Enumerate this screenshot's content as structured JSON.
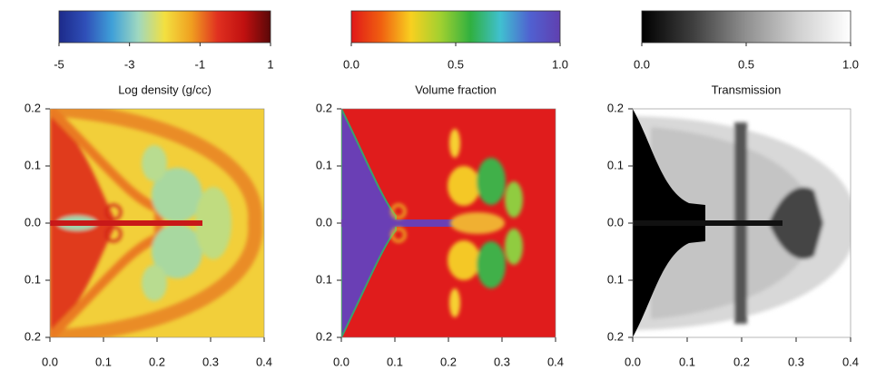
{
  "chart_data": [
    {
      "type": "image",
      "colorbar_label": "Log density (g/cc)",
      "colormap": [
        "#1c2a8a",
        "#2f4fb8",
        "#3fa0d8",
        "#9fd8c0",
        "#f3e040",
        "#f0a020",
        "#e03020",
        "#c01010",
        "#5a0808"
      ],
      "clim": [
        -5,
        1
      ],
      "cticks": [
        -5,
        -3,
        -1,
        1
      ],
      "xlim": [
        0,
        0.4
      ],
      "xticks": [
        {
          "value": 0,
          "label": "0.0"
        },
        0.1,
        0.2,
        0.3,
        0.4
      ],
      "ylim": [
        -0.2,
        0.2
      ],
      "yticks": [
        0.2,
        0.1,
        {
          "value": 0,
          "label": "0.0"
        },
        {
          "value": -0.1,
          "label": "0.1"
        },
        {
          "value": -0.2,
          "label": "0.2"
        }
      ]
    },
    {
      "type": "image",
      "colorbar_label": "Volume fraction",
      "colormap": [
        "#e01818",
        "#f06010",
        "#f8d020",
        "#a0d030",
        "#30b040",
        "#40c0d0",
        "#5060d0",
        "#6040b0"
      ],
      "clim": [
        0,
        1
      ],
      "cticks": [
        {
          "value": 0,
          "label": "0.0"
        },
        0.5,
        {
          "value": 1,
          "label": "1.0"
        }
      ],
      "xlim": [
        0,
        0.4
      ],
      "xticks": [
        {
          "value": 0,
          "label": "0.0"
        },
        0.1,
        0.2,
        0.3,
        0.4
      ],
      "ylim": [
        -0.2,
        0.2
      ],
      "yticks": [
        0.2,
        0.1,
        {
          "value": 0,
          "label": "0.0"
        },
        {
          "value": -0.1,
          "label": "0.1"
        },
        {
          "value": -0.2,
          "label": "0.2"
        }
      ]
    },
    {
      "type": "image",
      "colorbar_label": "Transmission",
      "colormap": [
        "#000000",
        "#404040",
        "#909090",
        "#d0d0d0",
        "#ffffff"
      ],
      "clim": [
        0,
        1
      ],
      "cticks": [
        {
          "value": 0,
          "label": "0.0"
        },
        0.5,
        {
          "value": 1,
          "label": "1.0"
        }
      ],
      "xlim": [
        0,
        0.4
      ],
      "xticks": [
        {
          "value": 0,
          "label": "0.0"
        },
        0.1,
        0.2,
        0.3,
        0.4
      ],
      "ylim": [
        -0.2,
        0.2
      ],
      "yticks": [
        0.2,
        0.1,
        {
          "value": 0,
          "label": "0.0"
        },
        {
          "value": -0.1,
          "label": "0.1"
        },
        {
          "value": -0.2,
          "label": "0.2"
        }
      ]
    }
  ]
}
